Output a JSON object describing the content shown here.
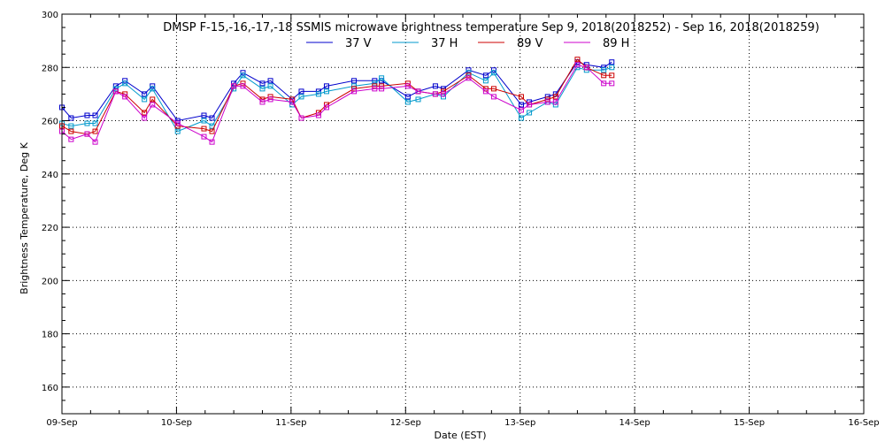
{
  "chart_data": {
    "type": "line",
    "title": "DMSP F-15,-16,-17,-18 SSMIS microwave brightness temperature Sep  9, 2018(2018252) - Sep 16, 2018(2018259)",
    "xlabel": "Date (EST)",
    "ylabel": "Brightness Temperature, Deg K",
    "ylim": [
      150,
      300
    ],
    "yticks": [
      160,
      180,
      200,
      220,
      240,
      260,
      280,
      300
    ],
    "xlim": [
      0,
      7
    ],
    "xticks": [
      {
        "x": 0,
        "label": "09-Sep"
      },
      {
        "x": 1,
        "label": "10-Sep"
      },
      {
        "x": 2,
        "label": "11-Sep"
      },
      {
        "x": 3,
        "label": "12-Sep"
      },
      {
        "x": 4,
        "label": "13-Sep"
      },
      {
        "x": 5,
        "label": "14-Sep"
      },
      {
        "x": 6,
        "label": "15-Sep"
      },
      {
        "x": 7,
        "label": "16-Sep"
      }
    ],
    "grid": true,
    "legend_position": "top-center",
    "series": [
      {
        "name": "37 V",
        "color": "#0000cc",
        "points": [
          [
            0.0,
            265
          ],
          [
            0.08,
            261
          ],
          [
            0.22,
            262
          ],
          [
            0.29,
            262
          ],
          [
            0.47,
            273
          ],
          [
            0.55,
            275
          ],
          [
            0.72,
            270
          ],
          [
            0.79,
            273
          ],
          [
            1.01,
            260
          ],
          [
            1.24,
            262
          ],
          [
            1.31,
            261
          ],
          [
            1.5,
            274
          ],
          [
            1.58,
            278
          ],
          [
            1.75,
            274
          ],
          [
            1.82,
            275
          ],
          [
            2.01,
            268
          ],
          [
            2.09,
            271
          ],
          [
            2.24,
            271
          ],
          [
            2.31,
            273
          ],
          [
            2.55,
            275
          ],
          [
            2.73,
            275
          ],
          [
            2.79,
            275
          ],
          [
            3.02,
            269
          ],
          [
            3.11,
            271
          ],
          [
            3.26,
            273
          ],
          [
            3.33,
            272
          ],
          [
            3.55,
            279
          ],
          [
            3.7,
            277
          ],
          [
            3.77,
            279
          ],
          [
            4.01,
            266
          ],
          [
            4.08,
            267
          ],
          [
            4.24,
            269
          ],
          [
            4.31,
            270
          ],
          [
            4.5,
            282
          ],
          [
            4.58,
            281
          ],
          [
            4.73,
            280
          ],
          [
            4.8,
            282
          ]
        ]
      },
      {
        "name": "37 H",
        "color": "#0099cc",
        "points": [
          [
            0.0,
            259
          ],
          [
            0.08,
            258
          ],
          [
            0.22,
            259
          ],
          [
            0.29,
            259
          ],
          [
            0.47,
            272
          ],
          [
            0.55,
            274
          ],
          [
            0.72,
            268
          ],
          [
            0.79,
            272
          ],
          [
            1.01,
            256
          ],
          [
            1.24,
            260
          ],
          [
            1.31,
            258
          ],
          [
            1.5,
            272
          ],
          [
            1.58,
            277
          ],
          [
            1.75,
            272
          ],
          [
            1.82,
            273
          ],
          [
            2.01,
            266
          ],
          [
            2.09,
            269
          ],
          [
            2.24,
            270
          ],
          [
            2.31,
            271
          ],
          [
            2.55,
            273
          ],
          [
            2.73,
            274
          ],
          [
            2.79,
            276
          ],
          [
            3.02,
            267
          ],
          [
            3.11,
            268
          ],
          [
            3.26,
            270
          ],
          [
            3.33,
            269
          ],
          [
            3.55,
            278
          ],
          [
            3.7,
            275
          ],
          [
            3.77,
            278
          ],
          [
            4.01,
            261
          ],
          [
            4.08,
            263
          ],
          [
            4.24,
            267
          ],
          [
            4.31,
            266
          ],
          [
            4.5,
            280
          ],
          [
            4.58,
            279
          ],
          [
            4.73,
            279
          ],
          [
            4.8,
            280
          ]
        ]
      },
      {
        "name": "89 V",
        "color": "#cc0000",
        "points": [
          [
            0.0,
            258
          ],
          [
            0.08,
            256
          ],
          [
            0.22,
            255
          ],
          [
            0.29,
            256
          ],
          [
            0.47,
            271
          ],
          [
            0.55,
            270
          ],
          [
            0.72,
            263
          ],
          [
            0.79,
            268
          ],
          [
            1.01,
            258
          ],
          [
            1.24,
            257
          ],
          [
            1.31,
            256
          ],
          [
            1.5,
            273
          ],
          [
            1.58,
            274
          ],
          [
            1.75,
            268
          ],
          [
            1.82,
            269
          ],
          [
            2.01,
            268
          ],
          [
            2.09,
            261
          ],
          [
            2.24,
            263
          ],
          [
            2.31,
            266
          ],
          [
            2.55,
            272
          ],
          [
            2.73,
            273
          ],
          [
            2.79,
            273
          ],
          [
            3.02,
            274
          ],
          [
            3.11,
            271
          ],
          [
            3.26,
            270
          ],
          [
            3.33,
            271
          ],
          [
            3.55,
            277
          ],
          [
            3.7,
            272
          ],
          [
            3.77,
            272
          ],
          [
            4.01,
            269
          ],
          [
            4.08,
            266
          ],
          [
            4.24,
            268
          ],
          [
            4.31,
            269
          ],
          [
            4.5,
            283
          ],
          [
            4.58,
            280
          ],
          [
            4.73,
            277
          ],
          [
            4.8,
            277
          ]
        ]
      },
      {
        "name": "89 H",
        "color": "#cc00cc",
        "points": [
          [
            0.0,
            256
          ],
          [
            0.08,
            253
          ],
          [
            0.22,
            255
          ],
          [
            0.29,
            252
          ],
          [
            0.47,
            271
          ],
          [
            0.55,
            269
          ],
          [
            0.72,
            261
          ],
          [
            0.79,
            266
          ],
          [
            1.01,
            259
          ],
          [
            1.24,
            254
          ],
          [
            1.31,
            252
          ],
          [
            1.5,
            273
          ],
          [
            1.58,
            273
          ],
          [
            1.75,
            267
          ],
          [
            1.82,
            268
          ],
          [
            2.01,
            267
          ],
          [
            2.09,
            261
          ],
          [
            2.24,
            262
          ],
          [
            2.31,
            265
          ],
          [
            2.55,
            271
          ],
          [
            2.73,
            272
          ],
          [
            2.79,
            272
          ],
          [
            3.02,
            273
          ],
          [
            3.11,
            271
          ],
          [
            3.26,
            270
          ],
          [
            3.33,
            270
          ],
          [
            3.55,
            276
          ],
          [
            3.7,
            271
          ],
          [
            3.77,
            269
          ],
          [
            4.01,
            264
          ],
          [
            4.08,
            266
          ],
          [
            4.24,
            267
          ],
          [
            4.31,
            267
          ],
          [
            4.5,
            281
          ],
          [
            4.58,
            280
          ],
          [
            4.73,
            274
          ],
          [
            4.8,
            274
          ]
        ]
      }
    ]
  }
}
